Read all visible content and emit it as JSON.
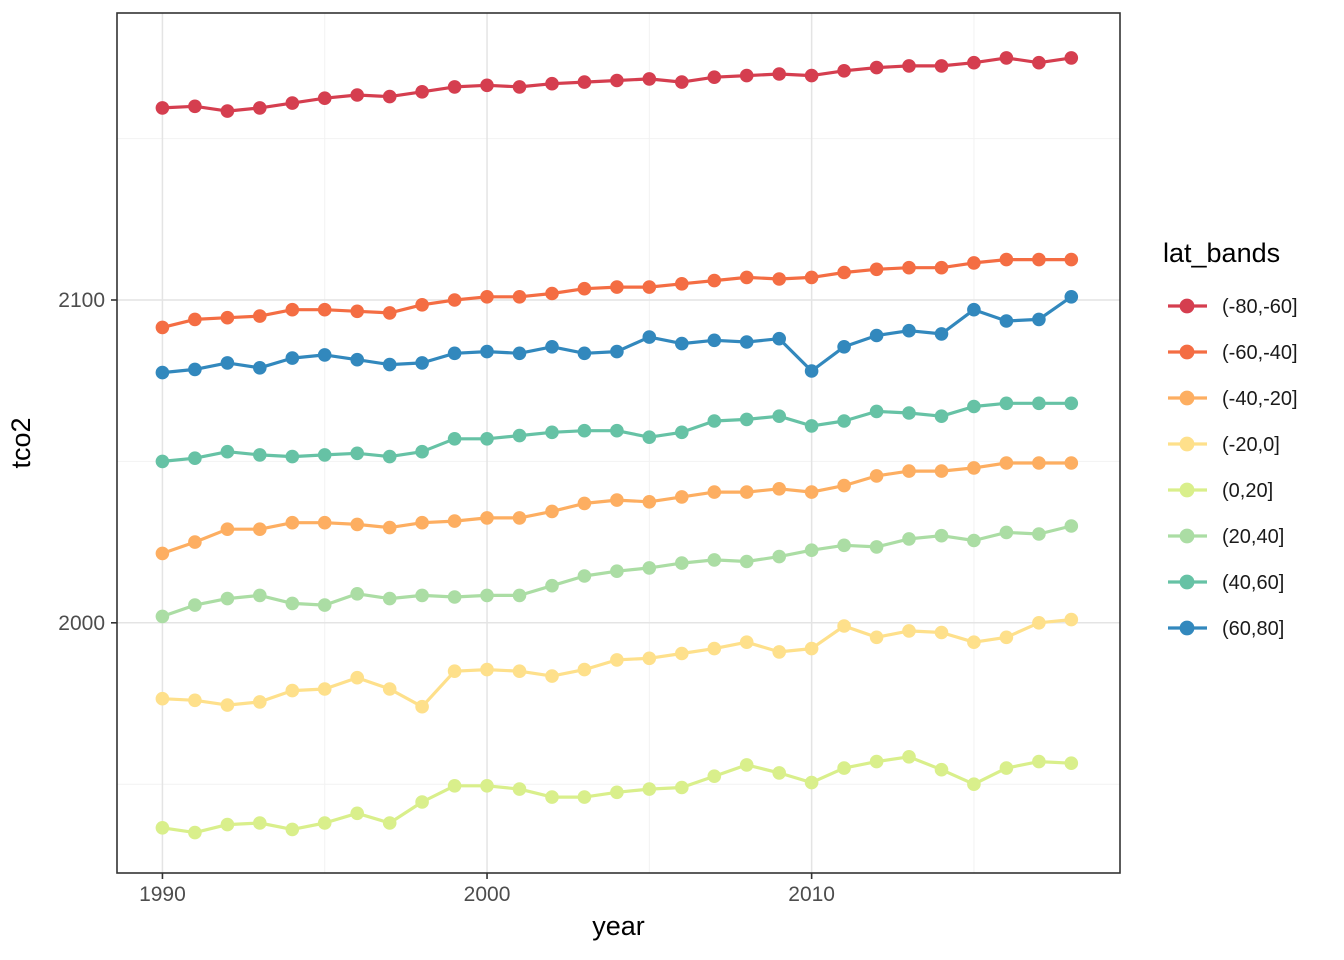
{
  "figure": {
    "background": "#ffffff"
  },
  "colors": {
    "panel_background": "#ffffff",
    "panel_border": "#333333",
    "grid_major": "#e4e4e4",
    "grid_minor": "#f2f2f2",
    "tick_mark": "#333333",
    "axis_text": "#4d4d4d",
    "axis_title": "#000000",
    "legend_text": "#1a1a1a"
  },
  "chart_data": {
    "type": "line",
    "title": "",
    "xlabel": "year",
    "ylabel": "tco2",
    "legend_title": "lat_bands",
    "legend_position": "right",
    "grid": true,
    "x_range": [
      1988.6,
      2019.5
    ],
    "y_range": [
      1922.5,
      2188.9
    ],
    "x_ticks": {
      "major": [
        1990,
        2000,
        2010
      ],
      "minor": [
        1995,
        2005,
        2015
      ]
    },
    "y_ticks": {
      "major": [
        2000,
        2100
      ],
      "minor": [
        1950,
        2050,
        2150
      ]
    },
    "x": [
      1990,
      1991,
      1992,
      1993,
      1994,
      1995,
      1996,
      1997,
      1998,
      1999,
      2000,
      2001,
      2002,
      2003,
      2004,
      2005,
      2006,
      2007,
      2008,
      2009,
      2010,
      2011,
      2012,
      2013,
      2014,
      2015,
      2016,
      2017,
      2018
    ],
    "series": [
      {
        "name": "(-80,-60]",
        "color": "#d53e4f",
        "values": [
          2159.5,
          2160,
          2158.5,
          2159.5,
          2161,
          2162.5,
          2163.5,
          2163,
          2164.5,
          2166,
          2166.5,
          2166,
          2167,
          2167.5,
          2168,
          2168.5,
          2167.5,
          2169,
          2169.5,
          2170,
          2169.5,
          2171,
          2172,
          2172.5,
          2172.5,
          2173.5,
          2175,
          2173.5,
          2175
        ]
      },
      {
        "name": "(-60,-40]",
        "color": "#f46d43",
        "values": [
          2091.5,
          2094,
          2094.5,
          2095,
          2097,
          2097,
          2096.5,
          2096,
          2098.5,
          2100,
          2101,
          2101,
          2102,
          2103.5,
          2104,
          2104,
          2105,
          2106,
          2107,
          2106.5,
          2107,
          2108.5,
          2109.5,
          2110,
          2110,
          2111.5,
          2112.5,
          2112.5,
          2112.5
        ]
      },
      {
        "name": "(-40,-20]",
        "color": "#fdae61",
        "values": [
          2021.5,
          2025,
          2029,
          2029,
          2031,
          2031,
          2030.5,
          2029.5,
          2031,
          2031.5,
          2032.5,
          2032.5,
          2034.5,
          2037,
          2038,
          2037.5,
          2039,
          2040.5,
          2040.5,
          2041.5,
          2040.5,
          2042.5,
          2045.5,
          2047,
          2047,
          2048,
          2049.5,
          2049.5,
          2049.5
        ]
      },
      {
        "name": "(-20,0]",
        "color": "#fee08b",
        "values": [
          1976.5,
          1976,
          1974.5,
          1975.5,
          1979,
          1979.5,
          1983,
          1979.5,
          1974,
          1985,
          1985.5,
          1985,
          1983.5,
          1985.5,
          1988.5,
          1989,
          1990.5,
          1992,
          1994,
          1991,
          1992,
          1999,
          1995.5,
          1997.5,
          1997,
          1994,
          1995.5,
          2000,
          2001
        ]
      },
      {
        "name": "(0,20]",
        "color": "#d9ef8b",
        "values": [
          1936.5,
          1935,
          1937.5,
          1938,
          1936,
          1938,
          1941,
          1938,
          1944.5,
          1949.5,
          1949.5,
          1948.5,
          1946,
          1946,
          1947.5,
          1948.5,
          1949,
          1952.5,
          1956,
          1953.5,
          1950.5,
          1955,
          1957,
          1958.5,
          1954.5,
          1950,
          1955,
          1957,
          1956.5
        ]
      },
      {
        "name": "(20,40]",
        "color": "#abdda4",
        "values": [
          2002,
          2005.5,
          2007.5,
          2008.5,
          2006,
          2005.5,
          2009,
          2007.5,
          2008.5,
          2008,
          2008.5,
          2008.5,
          2011.5,
          2014.5,
          2016,
          2017,
          2018.5,
          2019.5,
          2019,
          2020.5,
          2022.5,
          2024,
          2023.5,
          2026,
          2027,
          2025.5,
          2028,
          2027.5,
          2030
        ]
      },
      {
        "name": "(40,60]",
        "color": "#66c2a5",
        "values": [
          2050,
          2051,
          2053,
          2052,
          2051.5,
          2052,
          2052.5,
          2051.5,
          2053,
          2057,
          2057,
          2058,
          2059,
          2059.5,
          2059.5,
          2057.5,
          2059,
          2062.5,
          2063,
          2064,
          2061,
          2062.5,
          2065.5,
          2065,
          2064,
          2067,
          2068,
          2068,
          2068
        ]
      },
      {
        "name": "(60,80]",
        "color": "#3288bd",
        "values": [
          2077.5,
          2078.5,
          2080.5,
          2079,
          2082,
          2083,
          2081.5,
          2080,
          2080.5,
          2083.5,
          2084,
          2083.5,
          2085.5,
          2083.5,
          2084,
          2088.5,
          2086.5,
          2087.5,
          2087,
          2088,
          2078,
          2085.5,
          2089,
          2090.5,
          2089.5,
          2097,
          2093.5,
          2094,
          2101
        ]
      }
    ]
  }
}
